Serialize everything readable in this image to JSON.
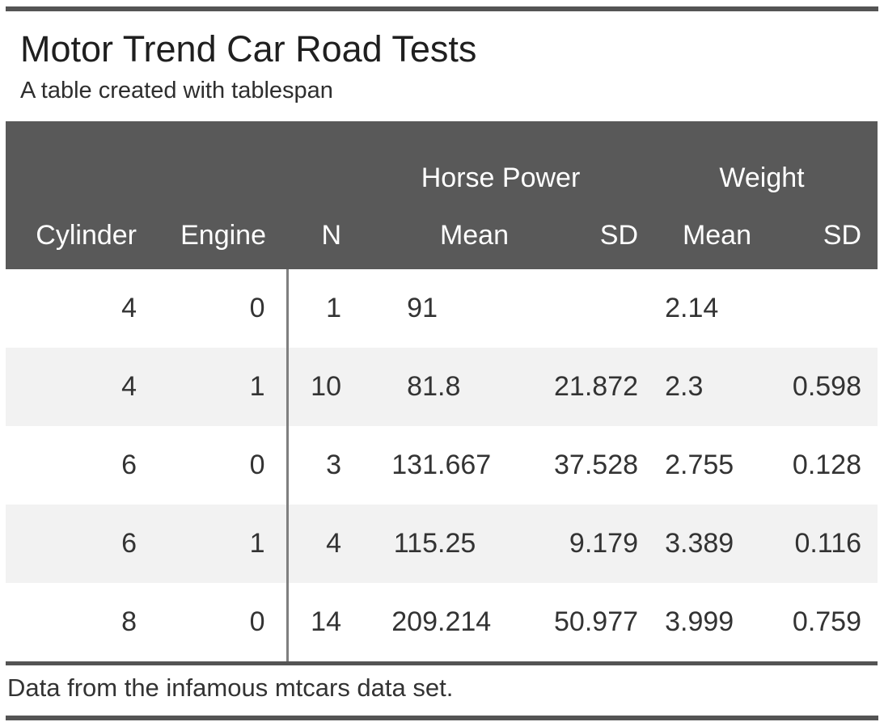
{
  "title": "Motor Trend Car Road Tests",
  "subtitle": "A table created with tablespan",
  "footnote": "Data from the infamous mtcars data set.",
  "colors": {
    "header_background": "#595959",
    "header_text": "#ffffff",
    "rule": "#545454",
    "column_divider": "#7f7f7f",
    "row_stripe": "#f2f2f2",
    "body_text": "#333333"
  },
  "table": {
    "spanners": [
      {
        "label": "",
        "span": 3
      },
      {
        "label": "Horse Power",
        "span": 2
      },
      {
        "label": "Weight",
        "span": 2
      }
    ],
    "columns": [
      "Cylinder",
      "Engine",
      "N",
      "Mean",
      "SD",
      "Mean",
      "SD"
    ],
    "rows": [
      [
        "4",
        "0",
        "1",
        "91",
        "",
        "2.14",
        ""
      ],
      [
        "4",
        "1",
        "10",
        "81.8",
        "21.872",
        "2.3",
        "0.598"
      ],
      [
        "6",
        "0",
        "3",
        "131.667",
        "37.528",
        "2.755",
        "0.128"
      ],
      [
        "6",
        "1",
        "4",
        "115.25",
        "9.179",
        "3.389",
        "0.116"
      ],
      [
        "8",
        "0",
        "14",
        "209.214",
        "50.977",
        "3.999",
        "0.759"
      ]
    ]
  },
  "chart_data": {
    "type": "table",
    "title": "Motor Trend Car Road Tests",
    "subtitle": "A table created with tablespan",
    "footnote": "Data from the infamous mtcars data set.",
    "column_groups": [
      {
        "label": "Horse Power",
        "columns": [
          "Mean",
          "SD"
        ]
      },
      {
        "label": "Weight",
        "columns": [
          "Mean",
          "SD"
        ]
      }
    ],
    "columns": [
      "Cylinder",
      "Engine",
      "N",
      "Horse Power Mean",
      "Horse Power SD",
      "Weight Mean",
      "Weight SD"
    ],
    "rows": [
      [
        4,
        0,
        1,
        91,
        null,
        2.14,
        null
      ],
      [
        4,
        1,
        10,
        81.8,
        21.872,
        2.3,
        0.598
      ],
      [
        6,
        0,
        3,
        131.667,
        37.528,
        2.755,
        0.128
      ],
      [
        6,
        1,
        4,
        115.25,
        9.179,
        3.389,
        0.116
      ],
      [
        8,
        0,
        14,
        209.214,
        50.977,
        3.999,
        0.759
      ]
    ]
  }
}
